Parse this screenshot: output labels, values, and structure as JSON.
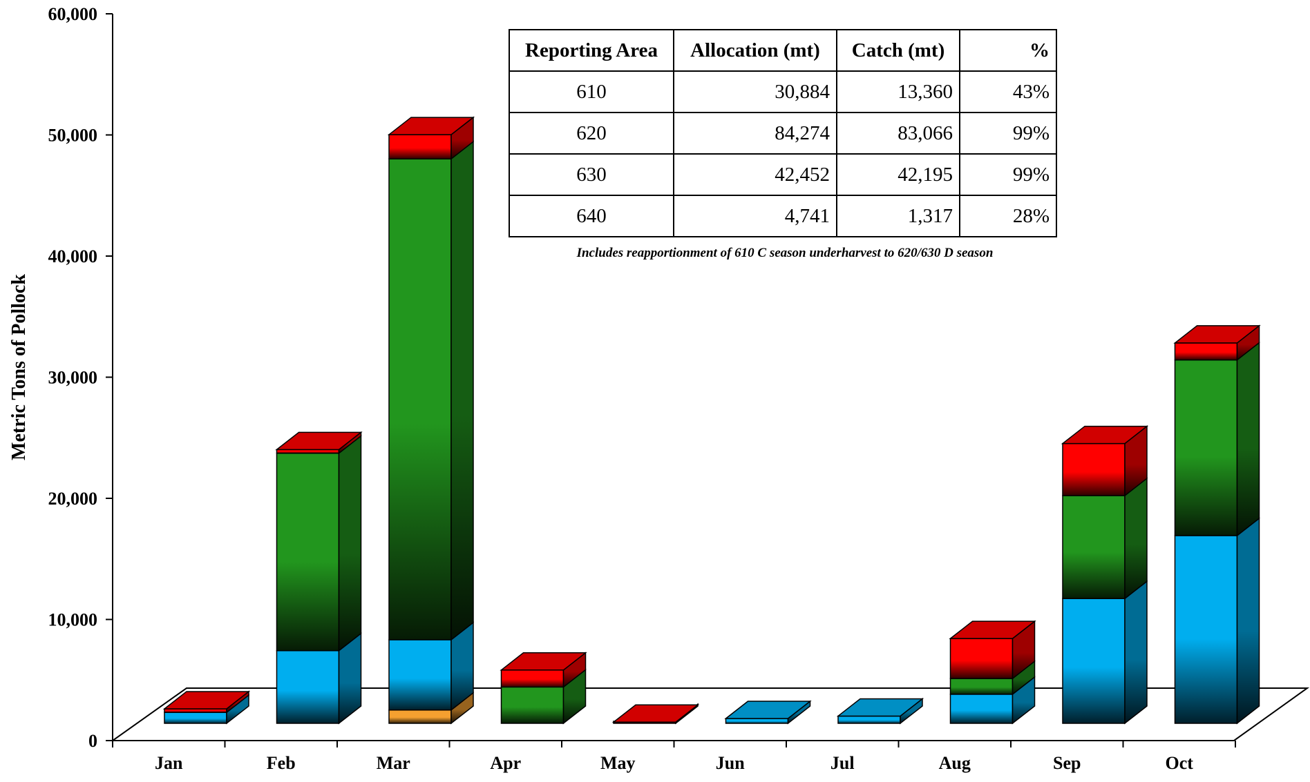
{
  "chart_data": {
    "type": "bar",
    "stacked": true,
    "three_d": true,
    "ylabel": "Metric Tons of Pollock",
    "xlabel": "",
    "ylim": [
      0,
      60000
    ],
    "yticks": [
      "0",
      "10,000",
      "20,000",
      "30,000",
      "40,000",
      "50,000",
      "60,000"
    ],
    "ytick_values": [
      0,
      10000,
      20000,
      30000,
      40000,
      50000,
      60000
    ],
    "categories": [
      "Jan",
      "Feb",
      "Mar",
      "Apr",
      "May",
      "Jun",
      "Jul",
      "Aug",
      "Sep",
      "Oct"
    ],
    "series": [
      {
        "color": "#f5a030",
        "values": [
          0,
          0,
          1100,
          0,
          0,
          0,
          0,
          0,
          0,
          0
        ]
      },
      {
        "color": "#00aeef",
        "values": [
          900,
          6000,
          5800,
          0,
          0,
          400,
          600,
          2400,
          10300,
          15500
        ]
      },
      {
        "color": "#22961e",
        "values": [
          0,
          16300,
          39700,
          3000,
          0,
          0,
          0,
          1300,
          8500,
          14500
        ]
      },
      {
        "color": "#ff0000",
        "values": [
          300,
          300,
          2000,
          1400,
          100,
          0,
          0,
          3300,
          4300,
          1400
        ]
      }
    ]
  },
  "table": {
    "headers": [
      "Reporting Area",
      "Allocation (mt)",
      "Catch (mt)",
      "%"
    ],
    "rows": [
      [
        "610",
        "30,884",
        "13,360",
        "43%"
      ],
      [
        "620",
        "84,274",
        "83,066",
        "99%"
      ],
      [
        "630",
        "42,452",
        "42,195",
        "99%"
      ],
      [
        "640",
        "4,741",
        "1,317",
        "28%"
      ]
    ],
    "note": "Includes reapportionment of 610 C season underharvest to 620/630 D season"
  }
}
